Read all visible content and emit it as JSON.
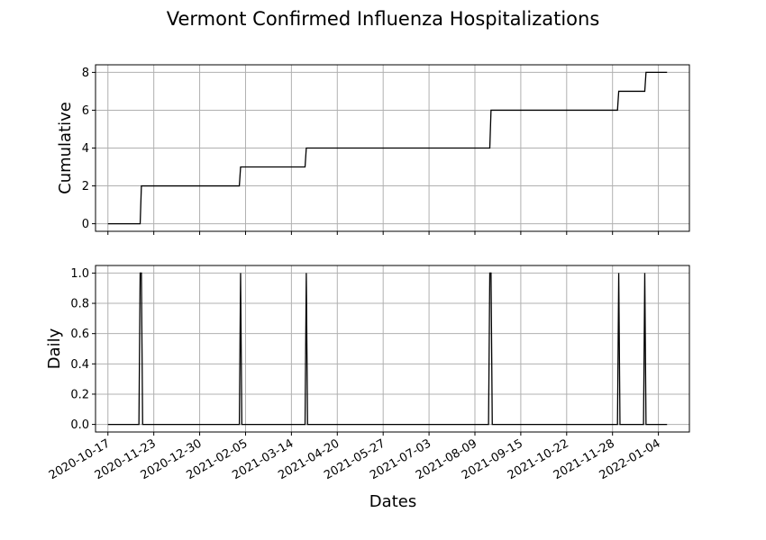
{
  "chart_data": {
    "title": "Vermont Confirmed Influenza Hospitalizations",
    "xlabel": "Dates",
    "x_tick_labels": [
      "2020-10-17",
      "2020-11-23",
      "2020-12-30",
      "2021-02-05",
      "2021-03-14",
      "2021-04-20",
      "2021-05-27",
      "2021-07-03",
      "2021-08-09",
      "2021-09-15",
      "2021-10-22",
      "2021-11-28",
      "2022-01-04"
    ],
    "x_range": [
      "2020-10-07",
      "2022-01-29"
    ],
    "grid": true,
    "panels": [
      {
        "type": "line",
        "ylabel": "Cumulative",
        "ylim": [
          -0.4,
          8.4
        ],
        "y_ticks": [
          0,
          2,
          4,
          6,
          8
        ],
        "y_tick_labels": [
          "0",
          "2",
          "4",
          "6",
          "8"
        ],
        "series": [
          {
            "color": "#000000",
            "points": [
              [
                "2020-10-17",
                0
              ],
              [
                "2020-11-12",
                0
              ],
              [
                "2020-11-13",
                2
              ],
              [
                "2021-01-31",
                2
              ],
              [
                "2021-02-01",
                3
              ],
              [
                "2021-03-25",
                3
              ],
              [
                "2021-03-26",
                4
              ],
              [
                "2021-08-21",
                4
              ],
              [
                "2021-08-22",
                6
              ],
              [
                "2021-12-02",
                6
              ],
              [
                "2021-12-03",
                7
              ],
              [
                "2021-12-24",
                7
              ],
              [
                "2021-12-25",
                8
              ],
              [
                "2022-01-11",
                8
              ]
            ]
          }
        ]
      },
      {
        "type": "line",
        "ylabel": "Daily",
        "ylim": [
          -0.05,
          1.05
        ],
        "y_ticks": [
          0.0,
          0.2,
          0.4,
          0.6,
          0.8,
          1.0
        ],
        "y_tick_labels": [
          "0.0",
          "0.2",
          "0.4",
          "0.6",
          "0.8",
          "1.0"
        ],
        "series": [
          {
            "color": "#000000",
            "points": [
              [
                "2020-10-17",
                0
              ],
              [
                "2020-11-11",
                0
              ],
              [
                "2020-11-12",
                1
              ],
              [
                "2020-11-13",
                1
              ],
              [
                "2020-11-14",
                0
              ],
              [
                "2021-01-31",
                0
              ],
              [
                "2021-02-01",
                1
              ],
              [
                "2021-02-02",
                0
              ],
              [
                "2021-03-25",
                0
              ],
              [
                "2021-03-26",
                1
              ],
              [
                "2021-03-27",
                0
              ],
              [
                "2021-08-20",
                0
              ],
              [
                "2021-08-21",
                1
              ],
              [
                "2021-08-22",
                1
              ],
              [
                "2021-08-23",
                0
              ],
              [
                "2021-12-02",
                0
              ],
              [
                "2021-12-03",
                1
              ],
              [
                "2021-12-04",
                0
              ],
              [
                "2021-12-23",
                0
              ],
              [
                "2021-12-24",
                1
              ],
              [
                "2021-12-25",
                0
              ],
              [
                "2022-01-11",
                0
              ]
            ]
          }
        ]
      }
    ]
  }
}
